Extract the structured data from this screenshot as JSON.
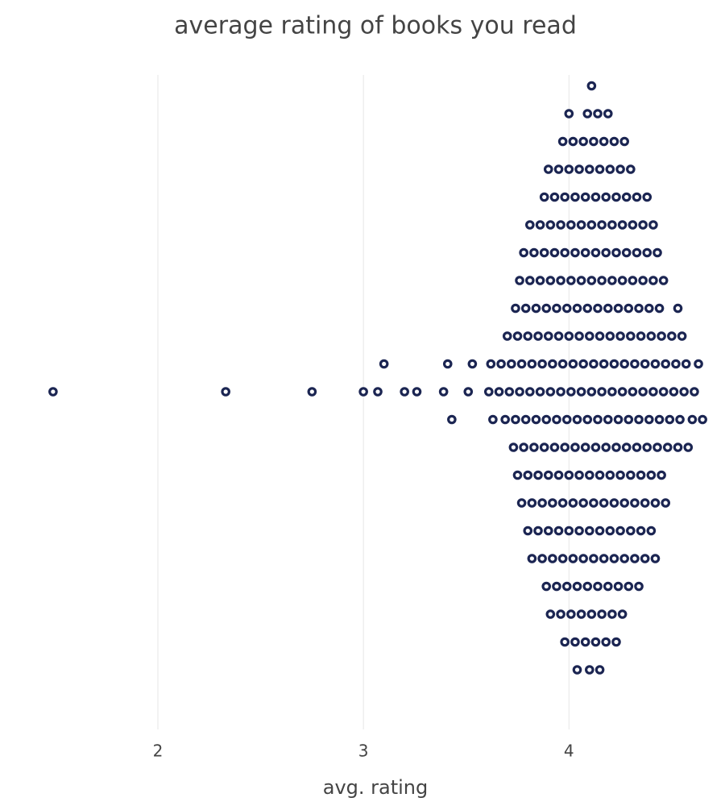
{
  "chart_data": {
    "type": "swarm",
    "title": "average rating of books you read",
    "x_label": "avg. rating",
    "color": "#1b2552",
    "grid": true,
    "xlim": [
      1.42,
      4.72
    ],
    "xticks": [
      2,
      3,
      4
    ],
    "values": [
      1.49,
      2.33,
      2.75,
      3.0,
      3.07,
      3.1,
      3.2,
      3.26,
      3.39,
      3.41,
      3.43,
      3.51,
      3.53,
      3.61,
      3.62,
      3.63,
      3.66,
      3.67,
      3.69,
      3.7,
      3.71,
      3.72,
      3.73,
      3.74,
      3.74,
      3.75,
      3.75,
      3.76,
      3.76,
      3.77,
      3.77,
      3.78,
      3.78,
      3.79,
      3.79,
      3.8,
      3.8,
      3.8,
      3.81,
      3.81,
      3.81,
      3.82,
      3.82,
      3.82,
      3.83,
      3.83,
      3.84,
      3.84,
      3.85,
      3.85,
      3.85,
      3.86,
      3.86,
      3.86,
      3.87,
      3.87,
      3.87,
      3.88,
      3.88,
      3.88,
      3.89,
      3.89,
      3.89,
      3.9,
      3.9,
      3.9,
      3.9,
      3.91,
      3.91,
      3.91,
      3.91,
      3.92,
      3.92,
      3.92,
      3.93,
      3.93,
      3.93,
      3.94,
      3.94,
      3.94,
      3.95,
      3.95,
      3.95,
      3.95,
      3.96,
      3.96,
      3.96,
      3.96,
      3.97,
      3.97,
      3.97,
      3.97,
      3.98,
      3.98,
      3.98,
      3.98,
      3.99,
      3.99,
      3.99,
      4.0,
      4.0,
      4.0,
      4.0,
      4.0,
      4.01,
      4.01,
      4.01,
      4.01,
      4.02,
      4.02,
      4.02,
      4.02,
      4.03,
      4.03,
      4.03,
      4.03,
      4.04,
      4.04,
      4.04,
      4.04,
      4.05,
      4.05,
      4.05,
      4.05,
      4.06,
      4.06,
      4.06,
      4.06,
      4.07,
      4.07,
      4.07,
      4.07,
      4.08,
      4.08,
      4.08,
      4.08,
      4.09,
      4.09,
      4.09,
      4.09,
      4.1,
      4.1,
      4.1,
      4.1,
      4.1,
      4.11,
      4.11,
      4.11,
      4.11,
      4.11,
      4.12,
      4.12,
      4.12,
      4.12,
      4.13,
      4.13,
      4.13,
      4.13,
      4.14,
      4.14,
      4.14,
      4.14,
      4.15,
      4.15,
      4.15,
      4.15,
      4.15,
      4.16,
      4.16,
      4.16,
      4.16,
      4.17,
      4.17,
      4.17,
      4.17,
      4.18,
      4.18,
      4.18,
      4.18,
      4.19,
      4.19,
      4.19,
      4.19,
      4.2,
      4.2,
      4.2,
      4.2,
      4.21,
      4.21,
      4.21,
      4.21,
      4.22,
      4.22,
      4.22,
      4.22,
      4.23,
      4.23,
      4.23,
      4.23,
      4.24,
      4.24,
      4.24,
      4.25,
      4.25,
      4.25,
      4.25,
      4.26,
      4.26,
      4.26,
      4.26,
      4.27,
      4.27,
      4.27,
      4.27,
      4.28,
      4.28,
      4.28,
      4.29,
      4.29,
      4.29,
      4.3,
      4.3,
      4.3,
      4.3,
      4.31,
      4.31,
      4.31,
      4.32,
      4.32,
      4.32,
      4.33,
      4.33,
      4.33,
      4.34,
      4.34,
      4.34,
      4.35,
      4.35,
      4.35,
      4.36,
      4.36,
      4.36,
      4.37,
      4.37,
      4.37,
      4.38,
      4.38,
      4.38,
      4.39,
      4.39,
      4.4,
      4.4,
      4.4,
      4.41,
      4.41,
      4.41,
      4.42,
      4.42,
      4.42,
      4.43,
      4.43,
      4.44,
      4.44,
      4.45,
      4.45,
      4.46,
      4.46,
      4.47,
      4.47,
      4.48,
      4.49,
      4.5,
      4.51,
      4.52,
      4.53,
      4.53,
      4.54,
      4.55,
      4.56,
      4.57,
      4.58,
      4.6,
      4.61,
      4.63,
      4.65
    ]
  }
}
